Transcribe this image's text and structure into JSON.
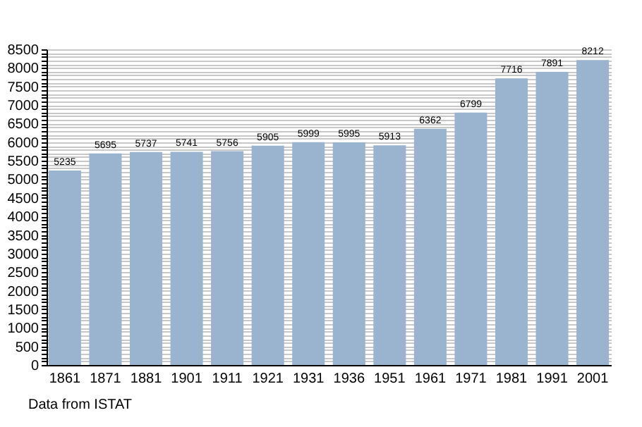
{
  "chart_data": {
    "type": "bar",
    "categories": [
      "1861",
      "1871",
      "1881",
      "1901",
      "1911",
      "1921",
      "1931",
      "1936",
      "1951",
      "1961",
      "1971",
      "1981",
      "1991",
      "2001"
    ],
    "values": [
      5235,
      5695,
      5737,
      5741,
      5756,
      5905,
      5999,
      5995,
      5913,
      6362,
      6799,
      7716,
      7891,
      8212
    ],
    "color": "#9ab3cf",
    "data_labels": true,
    "ylim": [
      0,
      8500
    ],
    "yticks": [
      0,
      {
        "value": 100,
        "label": null
      },
      {
        "value": 200,
        "label": null
      },
      {
        "value": 300,
        "label": null
      },
      {
        "value": 400,
        "label": null
      },
      500,
      {
        "value": 600,
        "label": null
      },
      {
        "value": 700,
        "label": null
      },
      {
        "value": 800,
        "label": null
      },
      {
        "value": 900,
        "label": null
      },
      1000,
      {
        "value": 1100,
        "label": null
      },
      {
        "value": 1200,
        "label": null
      },
      {
        "value": 1300,
        "label": null
      },
      {
        "value": 1400,
        "label": null
      },
      1500,
      {
        "value": 1600,
        "label": null
      },
      {
        "value": 1700,
        "label": null
      },
      {
        "value": 1800,
        "label": null
      },
      {
        "value": 1900,
        "label": null
      },
      2000,
      {
        "value": 2100,
        "label": null
      },
      {
        "value": 2200,
        "label": null
      },
      {
        "value": 2300,
        "label": null
      },
      {
        "value": 2400,
        "label": null
      },
      2500,
      {
        "value": 2600,
        "label": null
      },
      {
        "value": 2700,
        "label": null
      },
      {
        "value": 2800,
        "label": null
      },
      {
        "value": 2900,
        "label": null
      },
      3000,
      {
        "value": 3100,
        "label": null
      },
      {
        "value": 3200,
        "label": null
      },
      {
        "value": 3300,
        "label": null
      },
      {
        "value": 3400,
        "label": null
      },
      3500,
      {
        "value": 3600,
        "label": null
      },
      {
        "value": 3700,
        "label": null
      },
      {
        "value": 3800,
        "label": null
      },
      {
        "value": 3900,
        "label": null
      },
      4000,
      {
        "value": 4100,
        "label": null
      },
      {
        "value": 4200,
        "label": null
      },
      {
        "value": 4300,
        "label": null
      },
      {
        "value": 4400,
        "label": null
      },
      4500,
      {
        "value": 4600,
        "label": null
      },
      {
        "value": 4700,
        "label": null
      },
      {
        "value": 4800,
        "label": null
      },
      {
        "value": 4900,
        "label": null
      },
      5000,
      {
        "value": 5100,
        "label": null
      },
      {
        "value": 5200,
        "label": null
      },
      {
        "value": 5300,
        "label": null
      },
      {
        "value": 5400,
        "label": null
      },
      5500,
      {
        "value": 5600,
        "label": null
      },
      {
        "value": 5700,
        "label": null
      },
      {
        "value": 5800,
        "label": null
      },
      {
        "value": 5900,
        "label": null
      },
      6000,
      {
        "value": 6100,
        "label": null
      },
      {
        "value": 6200,
        "label": null
      },
      {
        "value": 6300,
        "label": null
      },
      {
        "value": 6400,
        "label": null
      },
      6500,
      {
        "value": 6600,
        "label": null
      },
      {
        "value": 6700,
        "label": null
      },
      {
        "value": 6800,
        "label": null
      },
      {
        "value": 6900,
        "label": null
      },
      7000,
      {
        "value": 7100,
        "label": null
      },
      {
        "value": 7200,
        "label": null
      },
      {
        "value": 7300,
        "label": null
      },
      {
        "value": 7400,
        "label": null
      },
      7500,
      {
        "value": 7600,
        "label": null
      },
      {
        "value": 7700,
        "label": null
      },
      {
        "value": 7800,
        "label": null
      },
      {
        "value": 7900,
        "label": null
      },
      8000,
      {
        "value": 8100,
        "label": null
      },
      {
        "value": 8200,
        "label": null
      },
      {
        "value": 8300,
        "label": null
      },
      {
        "value": 8400,
        "label": null
      },
      8500
    ],
    "grid": "y",
    "annotations": [
      "Data from ISTAT"
    ]
  }
}
